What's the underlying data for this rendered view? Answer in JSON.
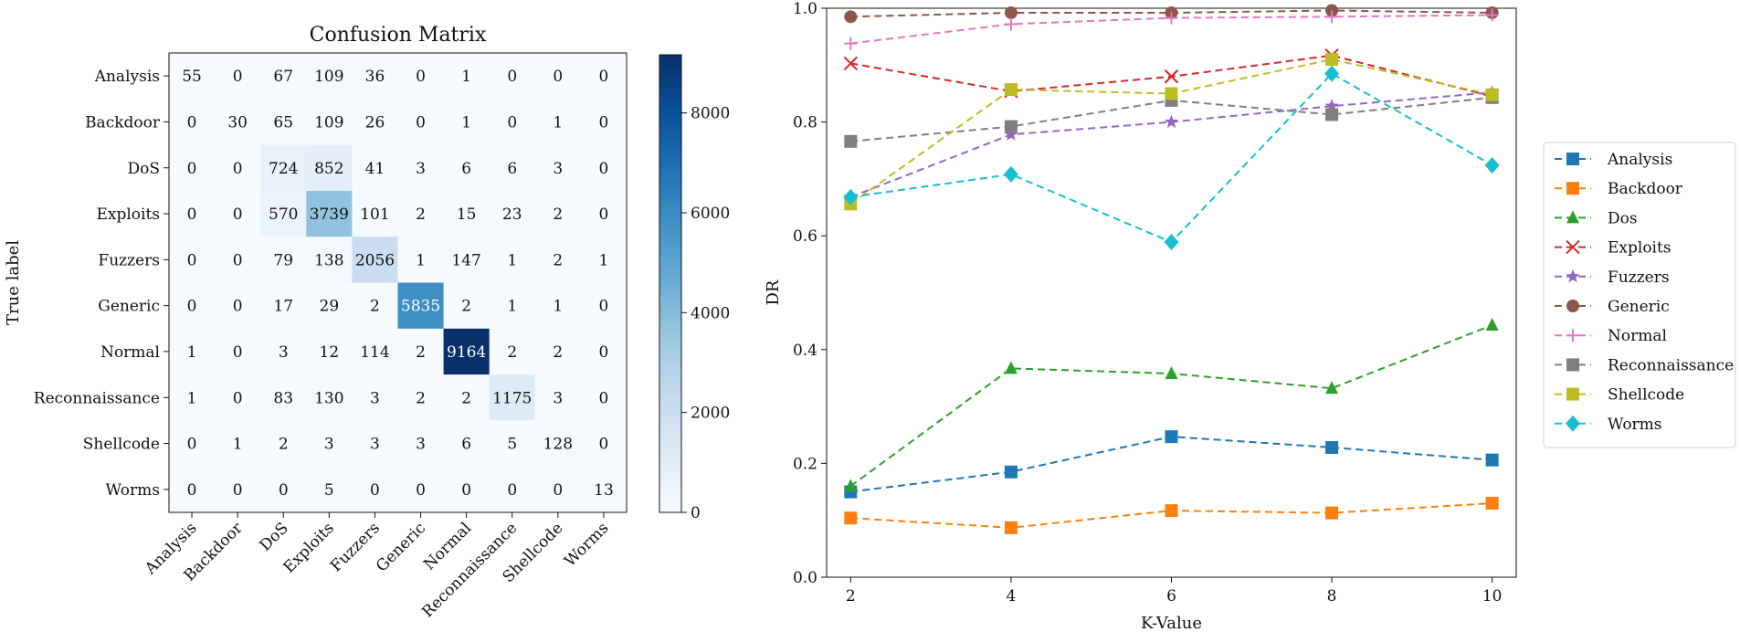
{
  "chart_data": [
    {
      "type": "heatmap",
      "title": "Confusion Matrix",
      "ylabel": "True label",
      "xlabel": "",
      "rows": [
        "Analysis",
        "Backdoor",
        "DoS",
        "Exploits",
        "Fuzzers",
        "Generic",
        "Normal",
        "Reconnaissance",
        "Shellcode",
        "Worms"
      ],
      "cols": [
        "Analysis",
        "Backdoor",
        "DoS",
        "Exploits",
        "Fuzzers",
        "Generic",
        "Normal",
        "Reconnaissance",
        "Shellcode",
        "Worms"
      ],
      "matrix": [
        [
          55,
          0,
          67,
          109,
          36,
          0,
          1,
          0,
          0,
          0
        ],
        [
          0,
          30,
          65,
          109,
          26,
          0,
          1,
          0,
          1,
          0
        ],
        [
          0,
          0,
          724,
          852,
          41,
          3,
          6,
          6,
          3,
          0
        ],
        [
          0,
          0,
          570,
          3739,
          101,
          2,
          15,
          23,
          2,
          0
        ],
        [
          0,
          0,
          79,
          138,
          2056,
          1,
          147,
          1,
          2,
          1
        ],
        [
          0,
          0,
          17,
          29,
          2,
          5835,
          2,
          1,
          1,
          0
        ],
        [
          1,
          0,
          3,
          12,
          114,
          2,
          9164,
          2,
          2,
          0
        ],
        [
          1,
          0,
          83,
          130,
          3,
          2,
          2,
          1175,
          3,
          0
        ],
        [
          0,
          1,
          2,
          3,
          3,
          3,
          6,
          5,
          128,
          0
        ],
        [
          0,
          0,
          0,
          5,
          0,
          0,
          0,
          0,
          0,
          13
        ]
      ],
      "colorbar": {
        "min": 0,
        "max": 9164,
        "ticks": [
          0,
          2000,
          4000,
          6000,
          8000
        ],
        "cmap": "Blues"
      }
    },
    {
      "type": "line",
      "xlabel": "K-Value",
      "ylabel": "DR",
      "x": [
        2,
        4,
        6,
        8,
        10
      ],
      "xticks": [
        2,
        4,
        6,
        8,
        10
      ],
      "ylim": [
        0.0,
        1.0
      ],
      "yticks": [
        "0.0",
        "0.2",
        "0.4",
        "0.6",
        "0.8",
        "1.0"
      ],
      "legend_position": "right-outside",
      "series": [
        {
          "name": "Analysis",
          "values": [
            0.15,
            0.185,
            0.247,
            0.228,
            0.206
          ],
          "color": "#1f77b4",
          "marker": "square"
        },
        {
          "name": "Backdoor",
          "values": [
            0.104,
            0.087,
            0.117,
            0.113,
            0.13
          ],
          "color": "#ff7f0e",
          "marker": "square"
        },
        {
          "name": "Dos",
          "values": [
            0.16,
            0.367,
            0.358,
            0.332,
            0.443
          ],
          "color": "#2ca02c",
          "marker": "triangle"
        },
        {
          "name": "Exploits",
          "values": [
            0.903,
            0.854,
            0.88,
            0.917,
            0.845
          ],
          "color": "#d62728",
          "marker": "x"
        },
        {
          "name": "Fuzzers",
          "values": [
            0.668,
            0.778,
            0.8,
            0.828,
            0.852
          ],
          "color": "#9467bd",
          "marker": "star"
        },
        {
          "name": "Generic",
          "values": [
            0.985,
            0.992,
            0.992,
            0.996,
            0.992
          ],
          "color": "#8c564b",
          "marker": "circle"
        },
        {
          "name": "Normal",
          "values": [
            0.938,
            0.972,
            0.983,
            0.985,
            0.988
          ],
          "color": "#e377c2",
          "marker": "plus"
        },
        {
          "name": "Reconnaissance",
          "values": [
            0.766,
            0.792,
            0.838,
            0.813,
            0.843
          ],
          "color": "#7f7f7f",
          "marker": "square"
        },
        {
          "name": "Shellcode",
          "values": [
            0.656,
            0.857,
            0.85,
            0.91,
            0.848
          ],
          "color": "#bcbd22",
          "marker": "square"
        },
        {
          "name": "Worms",
          "values": [
            0.668,
            0.708,
            0.589,
            0.885,
            0.724
          ],
          "color": "#17becf",
          "marker": "diamond"
        }
      ]
    }
  ]
}
